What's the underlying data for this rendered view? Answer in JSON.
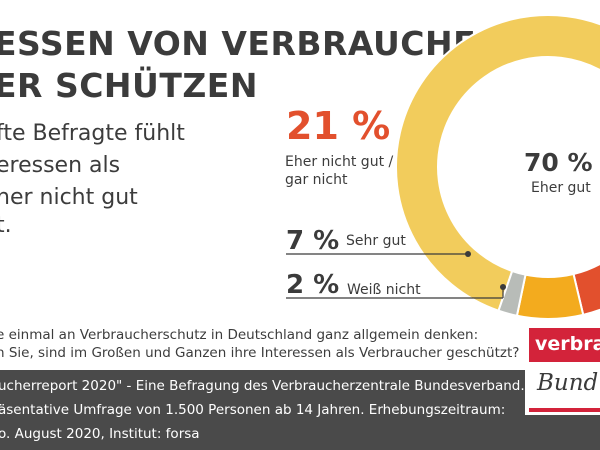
{
  "headline": {
    "line1": "ESSEN VON VERBRAUCHERN",
    "line2": "ER SCHÜTZEN"
  },
  "intro": {
    "line1": "fte Befragte fühlt",
    "line2": "eressen als",
    "line3": "her nicht gut",
    "line4": "t."
  },
  "chart_data": {
    "type": "pie",
    "style": "donut",
    "title": "",
    "slices": [
      {
        "key": "eher_gut",
        "label": "Eher gut",
        "value": 70,
        "value_label": "70 %",
        "color": "#f2cc5c"
      },
      {
        "key": "eher_nicht_gut",
        "label_line1": "Eher nicht gut /",
        "label_line2": "gar nicht",
        "value": 21,
        "value_label": "21 %",
        "color": "#e2502d"
      },
      {
        "key": "sehr_gut",
        "label": "Sehr gut",
        "value": 7,
        "value_label": "7 %",
        "color": "#f3ab1e"
      },
      {
        "key": "weiss_nicht",
        "label": "Weiß nicht",
        "value": 2,
        "value_label": "2 %",
        "color": "#b8bcb8"
      }
    ]
  },
  "question": {
    "line1": "e einmal an Verbraucherschutz in Deutschland ganz allgemein denken:",
    "line2": "n Sie, sind im Großen und Ganzen ihre Interessen als Verbraucher geschützt?"
  },
  "source": {
    "line1": "ucherreport 2020\" - Eine Befragung des Verbraucherzentrale Bundesverband.",
    "line2": "äsentative Umfrage von 1.500 Personen ab 14 Jahren. Erhebungszeitraum:",
    "line3": "o. August 2020, Institut: forsa"
  },
  "logo": {
    "word": "verbrauch",
    "script": "Bund"
  },
  "colors": {
    "text_dark": "#3b3b3b",
    "accent_red": "#e2502d",
    "footer_bg": "#4a4a4a",
    "logo_red": "#d3233a"
  }
}
